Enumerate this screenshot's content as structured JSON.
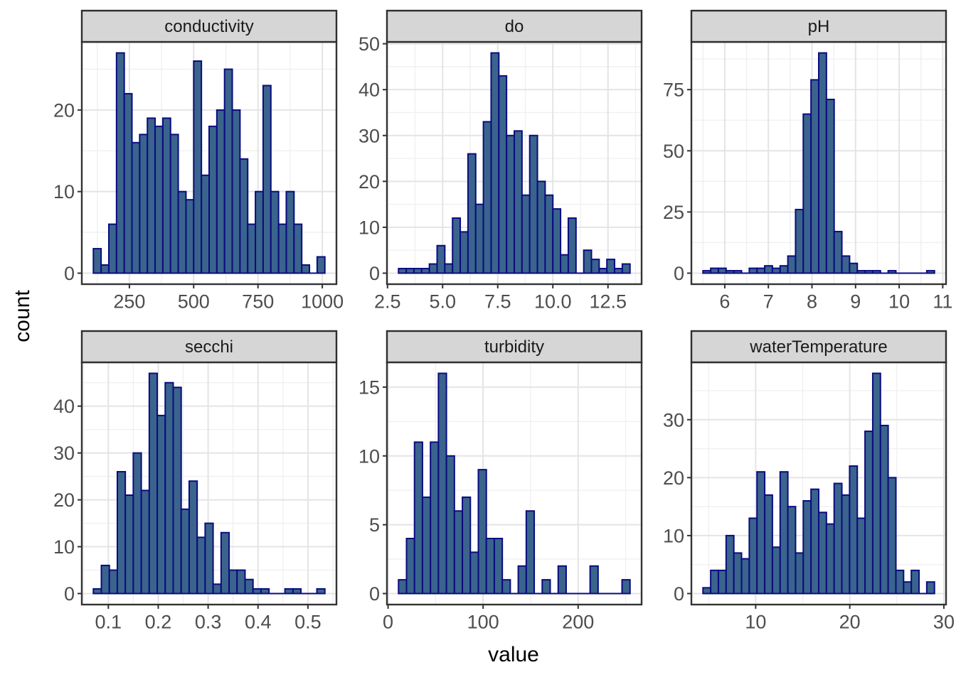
{
  "chart_data": {
    "type": "bar",
    "subtype": "faceted-histograms",
    "title": "",
    "xlabel": "value",
    "ylabel": "count",
    "grid": true,
    "legend": false,
    "facet_labels": [
      "conductivity",
      "do",
      "pH",
      "secchi",
      "turbidity",
      "waterTemperature"
    ],
    "colors": {
      "bar_fill": "#3a648c",
      "bar_stroke": "#0b0b80",
      "strip_bg": "#d6d6d6",
      "strip_border": "#2e2e2e",
      "panel_border": "#333333",
      "grid_major": "#e4e4e4",
      "grid_minor": "#f0f0f0",
      "tick_label": "#4d4d4d",
      "tick_mark": "#333333",
      "background": "#ffffff"
    },
    "facets": [
      {
        "label": "conductivity",
        "bin_start": 110,
        "bin_width": 30,
        "counts": [
          3,
          1,
          6,
          27,
          22,
          16,
          17,
          19,
          18,
          19,
          17,
          10,
          9,
          26,
          12,
          18,
          20,
          25,
          20,
          14,
          6,
          10,
          23,
          10,
          6,
          10,
          6,
          1,
          0,
          2
        ],
        "x_ticks": [
          250,
          500,
          750,
          1000
        ],
        "x_tick_labels": [
          "250",
          "500",
          "750",
          "1000"
        ],
        "y_ticks": [
          0,
          10,
          20
        ]
      },
      {
        "label": "do",
        "bin_start": 3.0,
        "bin_width": 0.35,
        "counts": [
          1,
          1,
          1,
          1,
          2,
          6,
          2,
          12,
          9,
          26,
          15,
          33,
          48,
          43,
          30,
          31,
          17,
          30,
          20,
          17,
          14,
          4,
          12,
          0,
          5,
          3,
          1,
          3,
          1,
          2
        ],
        "x_ticks": [
          2.5,
          5.0,
          7.5,
          10.0,
          12.5
        ],
        "x_tick_labels": [
          "2.5",
          "5.0",
          "7.5",
          "10.0",
          "12.5"
        ],
        "y_ticks": [
          0,
          10,
          20,
          30,
          40,
          50
        ]
      },
      {
        "label": "pH",
        "bin_start": 5.5,
        "bin_width": 0.177,
        "counts": [
          1,
          2,
          2,
          1,
          1,
          0,
          2,
          2,
          3,
          2,
          3,
          7,
          26,
          65,
          79,
          90,
          71,
          17,
          7,
          4,
          1,
          1,
          1,
          0,
          1,
          0,
          0,
          0,
          0,
          1
        ],
        "x_ticks": [
          6,
          7,
          8,
          9,
          10,
          11
        ],
        "x_tick_labels": [
          "6",
          "7",
          "8",
          "9",
          "10",
          "11"
        ],
        "y_ticks": [
          0,
          25,
          50,
          75
        ]
      },
      {
        "label": "secchi",
        "bin_start": 0.07,
        "bin_width": 0.016,
        "counts": [
          1,
          6,
          5,
          26,
          21,
          30,
          22,
          47,
          38,
          45,
          44,
          18,
          24,
          12,
          15,
          2,
          13,
          5,
          5,
          3,
          1,
          1,
          0,
          0,
          1,
          1,
          0,
          0,
          1
        ],
        "x_ticks": [
          0.1,
          0.2,
          0.3,
          0.4,
          0.5
        ],
        "x_tick_labels": [
          "0.1",
          "0.2",
          "0.3",
          "0.4",
          "0.5"
        ],
        "y_ticks": [
          0,
          10,
          20,
          30,
          40
        ]
      },
      {
        "label": "turbidity",
        "bin_start": 11,
        "bin_width": 8.4,
        "counts": [
          1,
          4,
          11,
          7,
          11,
          16,
          10,
          6,
          7,
          3,
          9,
          4,
          4,
          1,
          0,
          2,
          6,
          0,
          1,
          0,
          2,
          0,
          0,
          0,
          2,
          0,
          0,
          0,
          1
        ],
        "x_ticks": [
          0,
          100,
          200
        ],
        "x_tick_labels": [
          "0",
          "100",
          "200"
        ],
        "y_ticks": [
          0,
          5,
          10,
          15
        ]
      },
      {
        "label": "waterTemperature",
        "bin_start": 4.4,
        "bin_width": 0.82,
        "counts": [
          1,
          4,
          4,
          10,
          7,
          6,
          13,
          21,
          17,
          8,
          21,
          15,
          7,
          16,
          18,
          14,
          12,
          19,
          17,
          22,
          13,
          28,
          38,
          29,
          20,
          4,
          2,
          4,
          0,
          2
        ],
        "x_ticks": [
          10,
          20,
          30
        ],
        "x_tick_labels": [
          "10",
          "20",
          "30"
        ],
        "y_ticks": [
          0,
          10,
          20,
          30
        ]
      }
    ]
  }
}
